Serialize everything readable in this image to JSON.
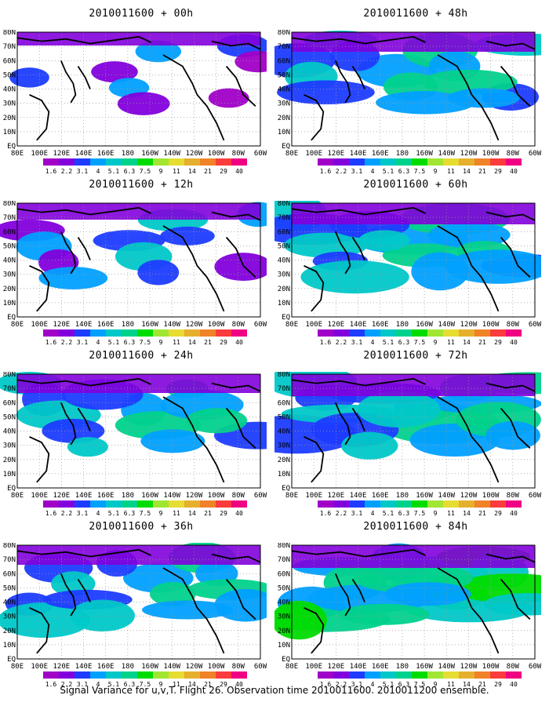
{
  "caption": "Signal Variance for u,v,T. Flight 26. Observation time 2010011600. 2010011200 ensemble.",
  "panels": [
    {
      "title": "2010011600 + 00h",
      "cov": 0.15
    },
    {
      "title": "2010011600 + 48h",
      "cov": 0.55
    },
    {
      "title": "2010011600 + 12h",
      "cov": 0.35
    },
    {
      "title": "2010011600 + 60h",
      "cov": 0.65
    },
    {
      "title": "2010011600 + 24h",
      "cov": 0.5
    },
    {
      "title": "2010011600 + 72h",
      "cov": 0.7
    },
    {
      "title": "2010011600 + 36h",
      "cov": 0.55
    },
    {
      "title": "2010011600 + 84h",
      "cov": 0.75
    }
  ],
  "lat_labels": [
    "80N",
    "70N",
    "60N",
    "50N",
    "40N",
    "30N",
    "20N",
    "10N",
    "EQ"
  ],
  "lon_labels": [
    "80E",
    "100E",
    "120E",
    "140E",
    "160E",
    "180",
    "160W",
    "140W",
    "120W",
    "100W",
    "80W",
    "60W"
  ],
  "colorbar": {
    "labels": [
      "1.6",
      "2.2",
      "3.1",
      "4",
      "5.1",
      "6.3",
      "7.5",
      "9",
      "11",
      "14",
      "21",
      "29",
      "40"
    ],
    "colors": [
      "#a000c8",
      "#8200dc",
      "#1e3cff",
      "#00a0ff",
      "#00c8c8",
      "#00d28c",
      "#00dc00",
      "#a0e632",
      "#e6dc32",
      "#e6af2d",
      "#f08228",
      "#fa3c3c",
      "#f00082"
    ]
  }
}
